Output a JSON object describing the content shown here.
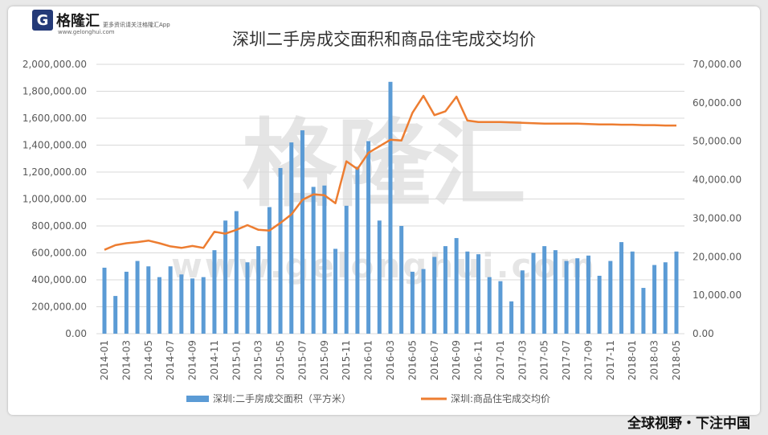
{
  "header": {
    "logo_text": "格隆汇",
    "logo_sub": "www.gelonghui.com",
    "logo_tip": "更多资讯请关注格隆汇App"
  },
  "watermark": {
    "text": "格隆汇",
    "url": "www.gelonghui.com"
  },
  "footer": {
    "text": "全球视野・下注中国"
  },
  "colors": {
    "bar": "#5b9bd5",
    "line": "#ed7d31",
    "grid": "#d9d9d9",
    "axis_text": "#595959"
  },
  "chart_data": {
    "type": "bar",
    "title": "深圳二手房成交面积和商品住宅成交均价",
    "categories": [
      "2014-01",
      "2014-02",
      "2014-03",
      "2014-04",
      "2014-05",
      "2014-06",
      "2014-07",
      "2014-08",
      "2014-09",
      "2014-10",
      "2014-11",
      "2014-12",
      "2015-01",
      "2015-02",
      "2015-03",
      "2015-04",
      "2015-05",
      "2015-06",
      "2015-07",
      "2015-08",
      "2015-09",
      "2015-10",
      "2015-11",
      "2015-12",
      "2016-01",
      "2016-02",
      "2016-03",
      "2016-04",
      "2016-05",
      "2016-06",
      "2016-07",
      "2016-08",
      "2016-09",
      "2016-10",
      "2016-11",
      "2016-12",
      "2017-01",
      "2017-02",
      "2017-03",
      "2017-04",
      "2017-05",
      "2017-06",
      "2017-07",
      "2017-08",
      "2017-09",
      "2017-10",
      "2017-11",
      "2017-12",
      "2018-01",
      "2018-02",
      "2018-03",
      "2018-04",
      "2018-05"
    ],
    "x_tick_labels": [
      "2014-01",
      "2014-03",
      "2014-05",
      "2014-07",
      "2014-09",
      "2014-11",
      "2015-01",
      "2015-03",
      "2015-05",
      "2015-07",
      "2015-09",
      "2015-11",
      "2016-01",
      "2016-03",
      "2016-05",
      "2016-07",
      "2016-09",
      "2016-11",
      "2017-01",
      "2017-03",
      "2017-05",
      "2017-07",
      "2017-09",
      "2017-11",
      "2018-01",
      "2018-03",
      "2018-05"
    ],
    "left_axis": {
      "ylim": [
        0,
        2000000
      ],
      "ticks": [
        "0.00",
        "200,000.00",
        "400,000.00",
        "600,000.00",
        "800,000.00",
        "1,000,000.00",
        "1,200,000.00",
        "1,400,000.00",
        "1,600,000.00",
        "1,800,000.00",
        "2,000,000.00"
      ]
    },
    "right_axis": {
      "ylim": [
        0,
        70000
      ],
      "ticks": [
        "0.00",
        "10,000.00",
        "20,000.00",
        "30,000.00",
        "40,000.00",
        "50,000.00",
        "60,000.00",
        "70,000.00"
      ]
    },
    "grid": true,
    "legend_position": "bottom",
    "series": [
      {
        "name": "深圳:二手房成交面积（平方米）",
        "type": "bar",
        "axis": "left",
        "values": [
          490000,
          280000,
          460000,
          540000,
          500000,
          420000,
          500000,
          440000,
          410000,
          420000,
          620000,
          840000,
          910000,
          530000,
          650000,
          940000,
          1230000,
          1420000,
          1510000,
          1090000,
          1100000,
          630000,
          950000,
          1240000,
          1430000,
          840000,
          1870000,
          800000,
          460000,
          480000,
          570000,
          650000,
          710000,
          610000,
          590000,
          420000,
          390000,
          240000,
          470000,
          600000,
          650000,
          620000,
          540000,
          560000,
          580000,
          430000,
          540000,
          680000,
          610000,
          340000,
          510000,
          530000,
          610000
        ]
      },
      {
        "name": "深圳:商品住宅成交均价",
        "type": "line",
        "axis": "right",
        "values": [
          21800,
          23000,
          23500,
          23800,
          24200,
          23500,
          22700,
          22300,
          22800,
          22300,
          26500,
          26000,
          27000,
          28200,
          27000,
          26800,
          28800,
          31000,
          34800,
          36200,
          36000,
          33900,
          44800,
          42800,
          47000,
          48700,
          50400,
          50200,
          57400,
          61800,
          56800,
          57800,
          61600,
          55400,
          55000,
          55000,
          55000,
          54900,
          54800,
          54700,
          54600,
          54600,
          54600,
          54600,
          54500,
          54400,
          54400,
          54300,
          54300,
          54200,
          54200,
          54100,
          54100
        ]
      }
    ]
  }
}
